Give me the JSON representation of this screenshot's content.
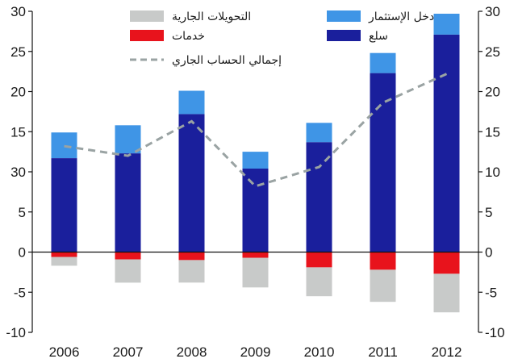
{
  "chart_data": {
    "type": "bar",
    "stacked": true,
    "categories": [
      "2006",
      "2007",
      "2008",
      "2009",
      "2010",
      "2011",
      "2012"
    ],
    "series": [
      {
        "name": "سلع",
        "color": "#1a1f9c",
        "values": [
          11.7,
          12.3,
          17.2,
          10.4,
          13.7,
          22.3,
          27.1
        ]
      },
      {
        "name": "دخل الإستثمار",
        "color": "#3f95e6",
        "values": [
          3.2,
          3.5,
          2.9,
          2.1,
          2.4,
          2.5,
          2.6
        ]
      },
      {
        "name": "خدمات",
        "color": "#e8131c",
        "values": [
          -0.6,
          -0.9,
          -1.0,
          -0.7,
          -1.9,
          -2.2,
          -2.7
        ]
      },
      {
        "name": "التحويلات الجارية",
        "color": "#c8cac9",
        "values": [
          -1.1,
          -2.9,
          -2.8,
          -3.7,
          -3.6,
          -4.0,
          -4.8
        ]
      }
    ],
    "line": {
      "name": "إجمالي الحساب الجاري",
      "color": "#9aa3a3",
      "style": "dashed",
      "values": [
        13.2,
        12.0,
        16.3,
        8.2,
        10.6,
        18.6,
        22.2
      ]
    },
    "ylim": [
      -10,
      30
    ],
    "yticks": [
      -10,
      -5,
      0,
      5,
      10,
      15,
      20,
      25,
      30
    ],
    "ytick_labels_left": [
      "-10",
      "-5",
      "0",
      "5",
      "10",
      "15",
      "20",
      "25",
      "30"
    ],
    "ytick_labels_right": [
      "-10",
      "-5",
      "0",
      "5",
      "10",
      "15",
      "20",
      "25",
      "30"
    ],
    "left_axis_label_overrides": {
      "10": "30"
    },
    "legend_position": "top",
    "grid": false,
    "title": "",
    "xlabel": "",
    "ylabel": ""
  }
}
